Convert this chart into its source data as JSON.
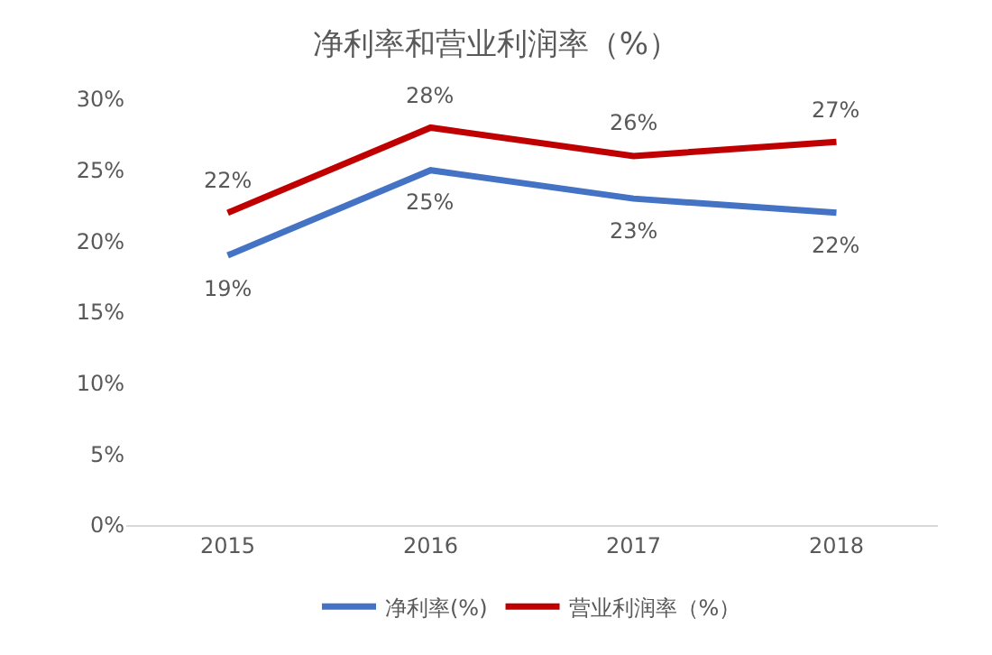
{
  "chart_data": {
    "type": "line",
    "title": "净利率和营业利润率（%）",
    "categories": [
      "2015",
      "2016",
      "2017",
      "2018"
    ],
    "series": [
      {
        "name": "净利率(%)",
        "color": "#4472c4",
        "values": [
          19,
          25,
          23,
          22
        ],
        "value_labels": [
          "19%",
          "25%",
          "23%",
          "22%"
        ]
      },
      {
        "name": "营业利润率（%）",
        "color": "#c00000",
        "values": [
          22,
          28,
          26,
          27
        ],
        "value_labels": [
          "22%",
          "28%",
          "26%",
          "27%"
        ]
      }
    ],
    "ylim": [
      0,
      30
    ],
    "yticks": [
      {
        "value": 0,
        "label": "0%"
      },
      {
        "value": 5,
        "label": "5%"
      },
      {
        "value": 10,
        "label": "10%"
      },
      {
        "value": 15,
        "label": "15%"
      },
      {
        "value": 20,
        "label": "20%"
      },
      {
        "value": 25,
        "label": "25%"
      },
      {
        "value": 30,
        "label": "30%"
      }
    ],
    "legend": "bottom",
    "marker": "none",
    "line_style": "solid"
  }
}
